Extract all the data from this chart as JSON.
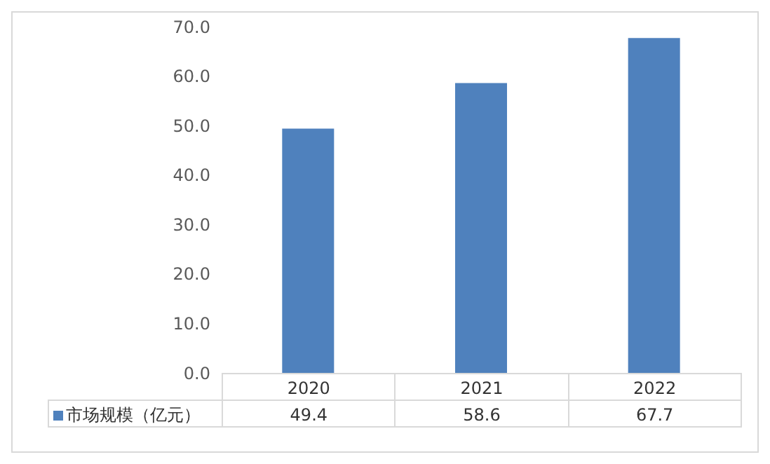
{
  "chart_data": {
    "type": "bar",
    "categories": [
      "2020",
      "2021",
      "2022"
    ],
    "series": [
      {
        "name": "市场规模（亿元）",
        "color": "#4f81bd",
        "values": [
          49.4,
          58.6,
          67.7
        ]
      }
    ],
    "ylim": [
      0,
      70
    ],
    "yticks": [
      {
        "value": 0,
        "label": "0.0"
      },
      {
        "value": 10,
        "label": "10.0"
      },
      {
        "value": 20,
        "label": "20.0"
      },
      {
        "value": 30,
        "label": "30.0"
      },
      {
        "value": 40,
        "label": "40.0"
      },
      {
        "value": 50,
        "label": "50.0"
      },
      {
        "value": 60,
        "label": "60.0"
      },
      {
        "value": 70,
        "label": "70.0"
      }
    ],
    "grid": false,
    "legend": "bottom",
    "data_labels": true
  }
}
